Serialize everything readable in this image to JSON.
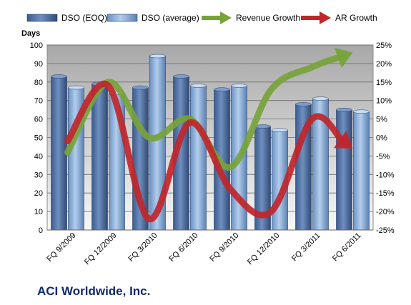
{
  "chart_data": {
    "type": "bar",
    "company": "ACI Worldwide, Inc.",
    "ylabel_left": "Days",
    "categories": [
      "FQ 9/2009",
      "FQ 12/2009",
      "FQ 3/2010",
      "FQ 6/2010",
      "FQ 9/2010",
      "FQ 12/2010",
      "FQ 3/2011",
      "FQ 6/2011"
    ],
    "left_axis": {
      "min": 0,
      "max": 100,
      "ticks": [
        "0",
        "10",
        "20",
        "30",
        "40",
        "50",
        "60",
        "70",
        "80",
        "90",
        "100"
      ]
    },
    "right_axis": {
      "min": -25,
      "max": 25,
      "ticks": [
        "-25%",
        "-20%",
        "-15%",
        "-10%",
        "-5%",
        "0%",
        "5%",
        "10%",
        "15%",
        "20%",
        "25%"
      ]
    },
    "bar_series": [
      {
        "name": "DSO (EOQ)",
        "values": [
          83,
          79,
          77,
          83,
          76,
          56,
          68,
          65
        ],
        "color": "#4a6fa5"
      },
      {
        "name": "DSO (average)",
        "values": [
          77,
          74,
          94,
          78,
          78,
          54,
          71,
          64
        ],
        "color": "#8fb2d9"
      }
    ],
    "line_series": [
      {
        "name": "Revenue Growth",
        "axis": "right",
        "values": [
          -4,
          15,
          0,
          5,
          -8,
          13,
          19,
          23
        ],
        "color": "#77a339"
      },
      {
        "name": "AR Growth",
        "axis": "right",
        "values": [
          -1,
          14,
          -22,
          4,
          -14,
          -20,
          5,
          -3
        ],
        "color": "#c0262b"
      }
    ],
    "grid": true,
    "legend_position": "top"
  }
}
